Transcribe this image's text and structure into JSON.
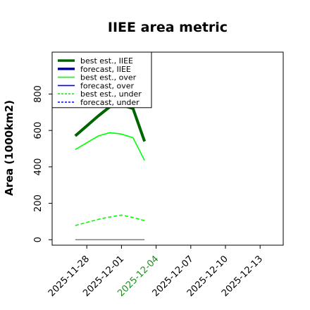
{
  "chart_data": {
    "type": "line",
    "title": "IIEE area metric",
    "xlabel": "",
    "ylabel": "Area (1000km2)",
    "ylim": [
      -30,
      1030
    ],
    "xlim": [
      "2025-11-25",
      "2025-12-15"
    ],
    "yticks": [
      0,
      200,
      400,
      600,
      800
    ],
    "xticks": [
      {
        "date": "2025-11-28",
        "label": "2025-11-28",
        "color": "#000000"
      },
      {
        "date": "2025-12-01",
        "label": "2025-12-01",
        "color": "#000000"
      },
      {
        "date": "2025-12-04",
        "label": "2025-12-04",
        "color": "#228b22"
      },
      {
        "date": "2025-12-07",
        "label": "2025-12-07",
        "color": "#000000"
      },
      {
        "date": "2025-12-10",
        "label": "2025-12-10",
        "color": "#000000"
      },
      {
        "date": "2025-12-13",
        "label": "2025-12-13",
        "color": "#000000"
      }
    ],
    "legend_position": "top-left",
    "grid": false,
    "series": [
      {
        "name": "best est., IIEE",
        "color": "#006400",
        "width": 4,
        "dash": "",
        "x": [
          "2025-11-27",
          "2025-11-29",
          "2025-11-30",
          "2025-12-01",
          "2025-12-02",
          "2025-12-03"
        ],
        "y": [
          570,
          680,
          730,
          740,
          720,
          540
        ]
      },
      {
        "name": "forecast, IIEE",
        "color": "#00008b",
        "width": 4,
        "dash": "",
        "x": [],
        "y": []
      },
      {
        "name": "best est., over",
        "color": "#00ff00",
        "width": 1.6,
        "dash": "",
        "x": [
          "2025-11-27",
          "2025-11-29",
          "2025-11-30",
          "2025-12-01",
          "2025-12-02",
          "2025-12-03"
        ],
        "y": [
          495,
          570,
          588,
          580,
          560,
          435
        ]
      },
      {
        "name": "forecast, over",
        "color": "#0000ff",
        "width": 1.6,
        "dash": "",
        "x": [],
        "y": []
      },
      {
        "name": "best est., under",
        "color": "#00ff00",
        "width": 1.6,
        "dash": "5,3",
        "x": [
          "2025-11-27",
          "2025-11-29",
          "2025-11-30",
          "2025-12-01",
          "2025-12-02",
          "2025-12-03"
        ],
        "y": [
          78,
          112,
          125,
          135,
          122,
          105
        ]
      },
      {
        "name": "forecast, under",
        "color": "#0000ff",
        "width": 1.6,
        "dash": "5,3",
        "x": [],
        "y": []
      }
    ],
    "reference_line": {
      "color": "#808080",
      "x": [
        "2025-11-27",
        "2025-12-03"
      ],
      "y": [
        0,
        0
      ]
    }
  }
}
